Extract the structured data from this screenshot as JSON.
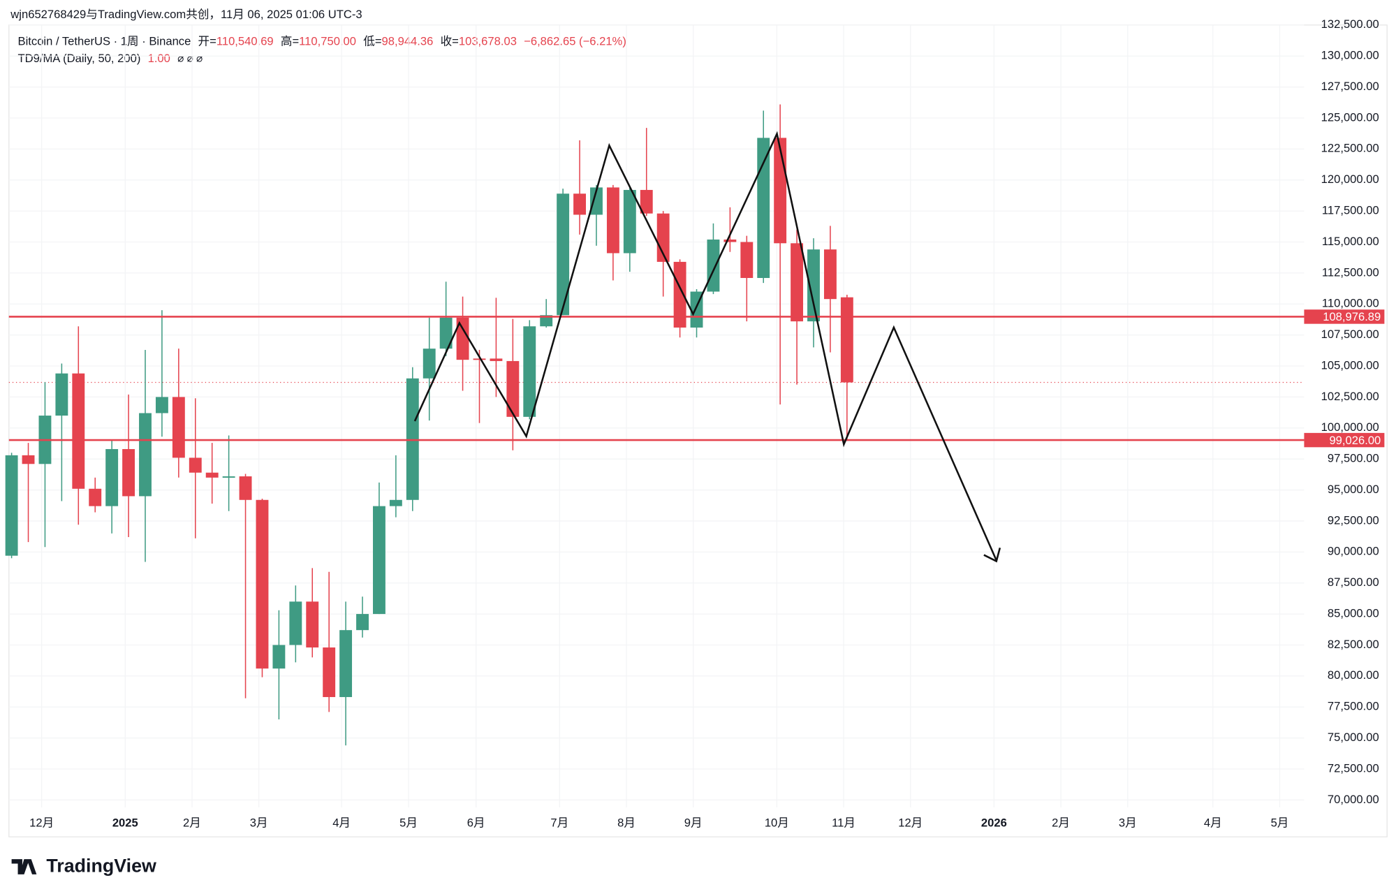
{
  "header": {
    "credit": "wjn652768429与TradingView.com共创，11月 06, 2025 01:06 UTC-3",
    "logo": "TradingView"
  },
  "chart_data": {
    "type": "candlestick",
    "symbol": "Bitcoin / TetherUS · 1周 · Binance",
    "legend_items": [
      {
        "name": "开=",
        "value": "110,540.69"
      },
      {
        "name": "高=",
        "value": "110,750.00"
      },
      {
        "name": "低=",
        "value": "98,944.36"
      },
      {
        "name": "收=",
        "value": "103,678.03"
      }
    ],
    "change": "−6,862.65 (−6.21%)",
    "indicator": {
      "name": "TD9/MA (Daily, 50, 200)",
      "value": "1.00",
      "extras": "⌀ ⌀ ⌀"
    },
    "up_color": "#3f9b83",
    "down_color": "#e5434e",
    "x": [
      0,
      1,
      2,
      3,
      4,
      5,
      6,
      7,
      8,
      9,
      10,
      11,
      12,
      13,
      14,
      15,
      16,
      17,
      18,
      19,
      20,
      21,
      22,
      23,
      24,
      25,
      26,
      27,
      28,
      29,
      30,
      31,
      32,
      33,
      34,
      35,
      36,
      37,
      38,
      39,
      40,
      41,
      42,
      43,
      44,
      45,
      46,
      47,
      48,
      49,
      50
    ],
    "open": [
      89700,
      97800,
      97100,
      101000,
      104400,
      95100,
      93700,
      98300,
      94500,
      101200,
      102500,
      97600,
      96400,
      96000,
      96100,
      94200,
      80600,
      82500,
      86000,
      82300,
      78300,
      83700,
      85000,
      93700,
      94200,
      104000,
      106400,
      108900,
      105600,
      105600,
      105400,
      100900,
      108200,
      109100,
      118900,
      117200,
      119400,
      114100,
      119200,
      117300,
      113400,
      108100,
      111000,
      115200,
      115000,
      112100,
      123400,
      114900,
      108600,
      114400,
      110540.69
    ],
    "high": [
      98000,
      98800,
      103700,
      105200,
      108200,
      96000,
      99000,
      102700,
      106300,
      109500,
      106400,
      102400,
      98800,
      99400,
      96300,
      94300,
      85300,
      87300,
      88700,
      88400,
      86000,
      86400,
      95600,
      97800,
      104900,
      108900,
      111800,
      110600,
      106300,
      110500,
      108800,
      108700,
      110400,
      119300,
      123200,
      119600,
      119600,
      119400,
      124200,
      117500,
      113600,
      111200,
      116500,
      117800,
      115500,
      125600,
      126100,
      116000,
      115300,
      116300,
      110750
    ],
    "low": [
      89500,
      90800,
      90400,
      94100,
      92200,
      93200,
      91500,
      91200,
      89200,
      99300,
      96000,
      91100,
      93900,
      93300,
      78200,
      79900,
      76500,
      81100,
      81500,
      77100,
      74400,
      83100,
      85000,
      92800,
      93300,
      100600,
      105800,
      103000,
      100400,
      102500,
      98200,
      100700,
      108100,
      109100,
      115600,
      114700,
      111900,
      112600,
      117100,
      110600,
      107300,
      107300,
      110800,
      114200,
      108600,
      111700,
      101900,
      103500,
      106500,
      106100,
      98944.36
    ],
    "close": [
      97800,
      97100,
      101000,
      104400,
      95100,
      93700,
      98300,
      94500,
      101200,
      102500,
      97600,
      96400,
      96000,
      96100,
      94200,
      80600,
      82500,
      86000,
      82300,
      78300,
      83700,
      85000,
      93700,
      94200,
      104000,
      106400,
      108900,
      105500,
      105500,
      105400,
      100900,
      108200,
      109100,
      118900,
      117200,
      119400,
      114100,
      119200,
      117300,
      113400,
      108100,
      111000,
      115200,
      115000,
      112100,
      123400,
      114900,
      108600,
      114400,
      110400,
      103678.03
    ],
    "levels": [
      {
        "value": 108976.89,
        "label": "108,976.89"
      },
      {
        "value": 99026,
        "label": "99,026.00"
      }
    ],
    "last_price": 103678.03,
    "xlim": [
      -0.16,
      77.36
    ],
    "xticks": [
      {
        "value": 1.8,
        "label": "12月"
      },
      {
        "value": 6.8,
        "label": "2025"
      },
      {
        "value": 10.8,
        "label": "2月"
      },
      {
        "value": 14.8,
        "label": "3月"
      },
      {
        "value": 19.75,
        "label": "4月"
      },
      {
        "value": 23.76,
        "label": "5月"
      },
      {
        "value": 27.8,
        "label": "6月"
      },
      {
        "value": 32.8,
        "label": "7月"
      },
      {
        "value": 36.8,
        "label": "8月"
      },
      {
        "value": 40.8,
        "label": "9月"
      },
      {
        "value": 45.8,
        "label": "10月"
      },
      {
        "value": 49.8,
        "label": "11月"
      },
      {
        "value": 53.8,
        "label": "12月"
      },
      {
        "value": 58.8,
        "label": "2026"
      },
      {
        "value": 62.8,
        "label": "2月"
      },
      {
        "value": 66.8,
        "label": "3月"
      },
      {
        "value": 71.9,
        "label": "4月"
      },
      {
        "value": 75.9,
        "label": "5月"
      }
    ],
    "ylim": [
      69400,
      132500
    ],
    "yticks": [
      {
        "value": 70000,
        "label": "70,000.00"
      },
      {
        "value": 72500,
        "label": "72,500.00"
      },
      {
        "value": 75000,
        "label": "75,000.00"
      },
      {
        "value": 77500,
        "label": "77,500.00"
      },
      {
        "value": 80000,
        "label": "80,000.00"
      },
      {
        "value": 82500,
        "label": "82,500.00"
      },
      {
        "value": 85000,
        "label": "85,000.00"
      },
      {
        "value": 87500,
        "label": "87,500.00"
      },
      {
        "value": 90000,
        "label": "90,000.00"
      },
      {
        "value": 92500,
        "label": "92,500.00"
      },
      {
        "value": 95000,
        "label": "95,000.00"
      },
      {
        "value": 97500,
        "label": "97,500.00"
      },
      {
        "value": 100000,
        "label": "100,000.00"
      },
      {
        "value": 102500,
        "label": "102,500.00"
      },
      {
        "value": 105000,
        "label": "105,000.00"
      },
      {
        "value": 107500,
        "label": "107,500.00"
      },
      {
        "value": 110000,
        "label": "110,000.00"
      },
      {
        "value": 112500,
        "label": "112,500.00"
      },
      {
        "value": 115000,
        "label": "115,000.00"
      },
      {
        "value": 117500,
        "label": "117,500.00"
      },
      {
        "value": 120000,
        "label": "120,000.00"
      },
      {
        "value": 122500,
        "label": "122,500.00"
      },
      {
        "value": 125000,
        "label": "125,000.00"
      },
      {
        "value": 127500,
        "label": "127,500.00"
      },
      {
        "value": 130000,
        "label": "130,000.00"
      },
      {
        "value": 132500,
        "label": "132,500.00"
      }
    ]
  }
}
